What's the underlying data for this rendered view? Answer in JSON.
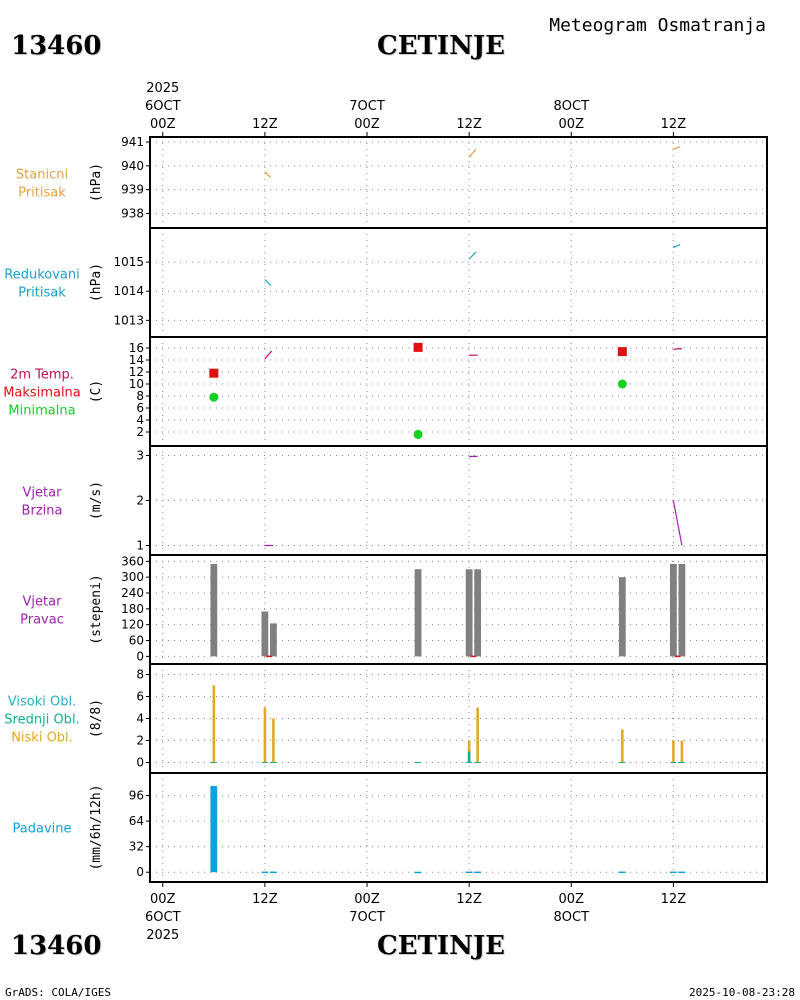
{
  "header": {
    "station_id": "13460",
    "station_name": "CETINJE",
    "product": "Meteogram Osmatranja"
  },
  "footer": {
    "station_id": "13460",
    "station_name": "CETINJE",
    "credit": "GrADS: COLA/IGES",
    "timestamp": "2025-10-08-23:28"
  },
  "time_axis": {
    "top": [
      {
        "hour": "00Z",
        "day": "6OCT",
        "year": "2025"
      },
      {
        "hour": "12Z"
      },
      {
        "hour": "00Z",
        "day": "7OCT"
      },
      {
        "hour": "12Z"
      },
      {
        "hour": "00Z",
        "day": "8OCT"
      },
      {
        "hour": "12Z"
      }
    ],
    "bottom": [
      {
        "hour": "00Z",
        "day": "6OCT",
        "year": "2025"
      },
      {
        "hour": "12Z"
      },
      {
        "hour": "00Z",
        "day": "7OCT"
      },
      {
        "hour": "12Z"
      },
      {
        "hour": "00Z",
        "day": "8OCT"
      },
      {
        "hour": "12Z"
      }
    ],
    "tick_hours": [
      0,
      12,
      24,
      36,
      48,
      60
    ],
    "range_hours": [
      -1.5,
      71
    ]
  },
  "colors": {
    "station_pressure": "#e8a040",
    "reduced_pressure": "#1aa0c8",
    "tmax": "#e01010",
    "tmin": "#10d020",
    "temp_line": "#c0105a",
    "wind": "#a020b0",
    "wind_dir_bar": "#808080",
    "wind_dir_mark": "#e01010",
    "high_cloud": "#20b0c0",
    "mid_cloud": "#10b090",
    "low_cloud": "#e0a820",
    "precip": "#10a0e0",
    "grid": "#888888"
  },
  "chart_data": [
    {
      "id": "station_pressure",
      "type": "line",
      "labels": [
        "Stanicni",
        "Pritisak"
      ],
      "label_colors": [
        "station_pressure",
        "station_pressure"
      ],
      "ylabel": "(hPa)",
      "ylim": [
        937.6,
        941
      ],
      "yticks": [
        938,
        939,
        940,
        941
      ],
      "series": [
        {
          "name": "Stanicni Pritisak",
          "color": "station_pressure",
          "segments": [
            [
              [
                12,
                939.75
              ],
              [
                12.7,
                939.5
              ]
            ],
            [
              [
                36,
                940.35
              ],
              [
                36.8,
                940.7
              ]
            ],
            [
              [
                60,
                940.7
              ],
              [
                60.8,
                940.8
              ]
            ]
          ]
        }
      ]
    },
    {
      "id": "reduced_pressure",
      "type": "line",
      "labels": [
        "Redukovani",
        "Pritisak"
      ],
      "label_colors": [
        "reduced_pressure",
        "reduced_pressure"
      ],
      "ylabel": "(hPa)",
      "ylim": [
        1012.6,
        1016
      ],
      "yticks": [
        1013,
        1014,
        1015
      ],
      "series": [
        {
          "name": "Redukovani Pritisak",
          "color": "reduced_pressure",
          "segments": [
            [
              [
                12,
                1014.4
              ],
              [
                12.7,
                1014.2
              ]
            ],
            [
              [
                36,
                1015.1
              ],
              [
                36.8,
                1015.35
              ]
            ],
            [
              [
                60,
                1015.5
              ],
              [
                60.8,
                1015.6
              ]
            ]
          ]
        }
      ]
    },
    {
      "id": "temperature",
      "type": "scatter",
      "labels": [
        "2m Temp.",
        "Maksimalna",
        "Minimalna"
      ],
      "label_colors": [
        "temp_line",
        "tmax",
        "tmin"
      ],
      "ylabel": "(C)",
      "ylim": [
        0.5,
        17
      ],
      "yticks": [
        2,
        4,
        6,
        8,
        10,
        12,
        14,
        16
      ],
      "series": [
        {
          "name": "2m Temp.",
          "color": "temp_line",
          "segments": [
            [
              [
                12,
                14.2
              ],
              [
                12.8,
                15.5
              ]
            ],
            [
              [
                36,
                14.8
              ],
              [
                37,
                14.8
              ]
            ],
            [
              [
                60,
                15.8
              ],
              [
                61,
                15.9
              ]
            ]
          ]
        },
        {
          "name": "Maksimalna",
          "color": "tmax",
          "marker": "square",
          "points": [
            [
              6,
              11.8
            ],
            [
              30,
              16.1
            ],
            [
              54,
              15.4
            ]
          ]
        },
        {
          "name": "Minimalna",
          "color": "tmin",
          "marker": "circle",
          "points": [
            [
              6,
              7.8
            ],
            [
              30,
              1.6
            ],
            [
              54,
              10.0
            ]
          ]
        }
      ]
    },
    {
      "id": "wind_speed",
      "type": "line",
      "labels": [
        "Vjetar",
        "Brzina"
      ],
      "label_colors": [
        "wind",
        "wind"
      ],
      "ylabel": "(m/s)",
      "ylim": [
        0.9,
        3.1
      ],
      "yticks": [
        1,
        2,
        3
      ],
      "series": [
        {
          "name": "Vjetar Brzina",
          "color": "wind",
          "segments": [
            [
              [
                12,
                1.0
              ],
              [
                13,
                1.0
              ]
            ],
            [
              [
                36,
                2.98
              ],
              [
                37,
                2.98
              ]
            ],
            [
              [
                60,
                2.0
              ],
              [
                61,
                1.0
              ]
            ]
          ]
        }
      ]
    },
    {
      "id": "wind_direction",
      "type": "bar",
      "labels": [
        "Vjetar",
        "Pravac"
      ],
      "label_colors": [
        "wind",
        "wind"
      ],
      "ylabel": "(stepeni)",
      "ylim": [
        -10,
        365
      ],
      "yticks": [
        0,
        60,
        120,
        180,
        240,
        300,
        360
      ],
      "bar_width_hours": 0.8,
      "bars": [
        [
          6,
          350
        ],
        [
          12,
          170
        ],
        [
          13,
          125
        ],
        [
          30,
          330
        ],
        [
          36,
          330
        ],
        [
          37,
          330
        ],
        [
          54,
          300
        ],
        [
          60,
          350
        ],
        [
          61,
          350
        ]
      ],
      "marks": [
        12.5,
        36.5,
        60.5
      ]
    },
    {
      "id": "clouds",
      "type": "bar",
      "labels": [
        "Visoki Obl.",
        "Srednji Obl.",
        "Niski Obl."
      ],
      "label_colors": [
        "high_cloud",
        "mid_cloud",
        "low_cloud"
      ],
      "ylabel": "(8/8)",
      "ylim": [
        -0.5,
        8.5
      ],
      "yticks": [
        0,
        2,
        4,
        6,
        8
      ],
      "bar_width_hours": 0.3,
      "series": [
        {
          "name": "Niski Obl.",
          "color": "low_cloud",
          "bars": [
            [
              6,
              7
            ],
            [
              12,
              5
            ],
            [
              13,
              4
            ],
            [
              36,
              2
            ],
            [
              37,
              5
            ],
            [
              54,
              3
            ],
            [
              60,
              2
            ],
            [
              61,
              2
            ]
          ]
        },
        {
          "name": "Srednji Obl.",
          "color": "mid_cloud",
          "bars": [
            [
              36,
              1
            ]
          ]
        },
        {
          "name": "Visoki Obl.",
          "color": "high_cloud",
          "bars": []
        }
      ]
    },
    {
      "id": "precipitation",
      "type": "bar",
      "labels": [
        "Padavine"
      ],
      "label_colors": [
        "precip"
      ],
      "ylabel": "(mm/6h/12h)",
      "ylim": [
        -6,
        118
      ],
      "yticks": [
        0,
        32,
        64,
        96
      ],
      "bar_width_hours": 0.8,
      "bars": [
        [
          6,
          108
        ],
        [
          12,
          0.8
        ],
        [
          13,
          0.8
        ],
        [
          30,
          0.6
        ],
        [
          36,
          0.8
        ],
        [
          37,
          0.8
        ],
        [
          54,
          0.8
        ],
        [
          60,
          0.8
        ],
        [
          61,
          0.8
        ]
      ]
    }
  ]
}
